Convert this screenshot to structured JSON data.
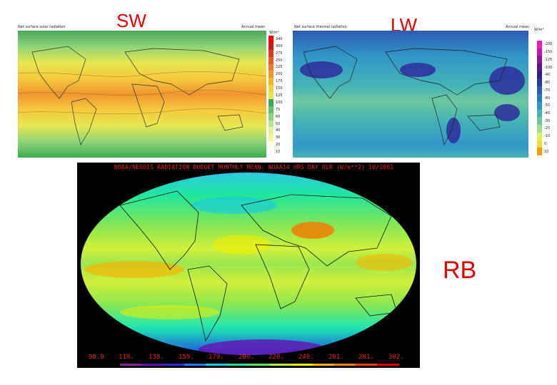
{
  "labels": {
    "sw": "SW",
    "lw": "LW",
    "rb": "RB"
  },
  "sw_map": {
    "title": "Net surface solar radiation",
    "period": "Annual mean",
    "unit": "W/m²",
    "colorbar": [
      "10",
      "20",
      "30",
      "40",
      "50",
      "60",
      "75",
      "100",
      "125",
      "150",
      "175",
      "200",
      "225",
      "250",
      "275",
      "300",
      "340"
    ],
    "colorbar_colors": [
      "#ffffff",
      "#ffffe0",
      "#f5f5a0",
      "#dcf0a0",
      "#b4e68c",
      "#8cd278",
      "#64be64",
      "#3caa50",
      "#e6e650",
      "#f5d23c",
      "#f5b432",
      "#f59628",
      "#f07828",
      "#e65a28",
      "#dc3c28",
      "#c81e1e",
      "#ff0000"
    ]
  },
  "lw_map": {
    "title": "Net surface thermal radiation",
    "period": "Annual mean",
    "unit": "W/m²",
    "colorbar": [
      "10",
      "0",
      "-10",
      "-20",
      "-30",
      "-40",
      "-50",
      "-60",
      "-70",
      "-80",
      "-90",
      "-100",
      "-125",
      "-150",
      "-200"
    ],
    "colorbar_colors": [
      "#f0a000",
      "#f5dc32",
      "#dcf064",
      "#a0dc8c",
      "#6ec8a0",
      "#46b4b4",
      "#3296c8",
      "#2878c8",
      "#2d5ab4",
      "#283ca0",
      "#2d1e8c",
      "#5a148c",
      "#8c1496",
      "#c814b4",
      "#f01eb4"
    ]
  },
  "rb_map": {
    "title": "NOAA/NESDIS RADIATION BUDGET MONTHLY MEAN:  NOAA14  HRS DAY OLR  (W/m**2)  10/2001",
    "colorbar": [
      "98.0",
      "118.",
      "138.",
      "159.",
      "179.",
      "200.",
      "220.",
      "240.",
      "261.",
      "281.",
      "302."
    ],
    "colorbar_colors": [
      "#000000",
      "#8c1e96",
      "#6414b4",
      "#2828dc",
      "#1e78f0",
      "#14c8e6",
      "#1ee6a0",
      "#50e650",
      "#b4f028",
      "#f0f000",
      "#f5b400",
      "#f57800",
      "#f03c00",
      "#e60000"
    ]
  }
}
